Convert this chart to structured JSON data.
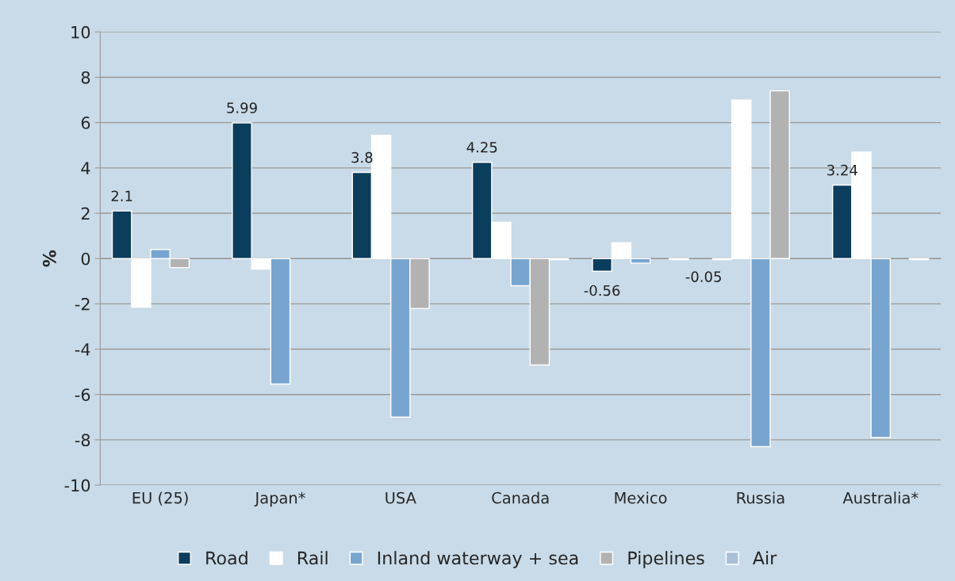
{
  "chart_data": {
    "type": "bar",
    "ylabel": "%",
    "categories": [
      "EU (25)",
      "Japan*",
      "USA",
      "Canada",
      "Mexico",
      "Russia",
      "Australia*"
    ],
    "series": [
      {
        "name": "Road",
        "color": "#0b3d5c",
        "values": [
          2.1,
          5.99,
          3.8,
          4.25,
          -0.56,
          -0.05,
          3.24
        ],
        "value_labels": [
          "2.1",
          "5.99",
          "3.8",
          "4.25",
          "-0.56",
          "-0.05",
          "3.24"
        ]
      },
      {
        "name": "Rail",
        "color": "#ffffff",
        "values": [
          -2.15,
          -0.47,
          5.44,
          1.6,
          0.7,
          7.0,
          4.7
        ]
      },
      {
        "name": "Inland waterway + sea",
        "color": "#77a5cf",
        "values": [
          0.4,
          -5.54,
          -7.0,
          -1.2,
          -0.2,
          -8.3,
          -7.9
        ]
      },
      {
        "name": "Pipelines",
        "color": "#b2b2b2",
        "values": [
          -0.4,
          null,
          -2.2,
          -4.7,
          null,
          7.4,
          null
        ]
      },
      {
        "name": "Air",
        "color": "#a9bfd8",
        "values": [
          null,
          null,
          null,
          -0.05,
          -0.05,
          null,
          -0.05
        ]
      }
    ],
    "ylim": [
      -10,
      10
    ],
    "yticks": [
      -10,
      -8,
      -6,
      -4,
      -2,
      0,
      2,
      4,
      6,
      8,
      10
    ],
    "grid": "y",
    "legend": "bottom"
  }
}
